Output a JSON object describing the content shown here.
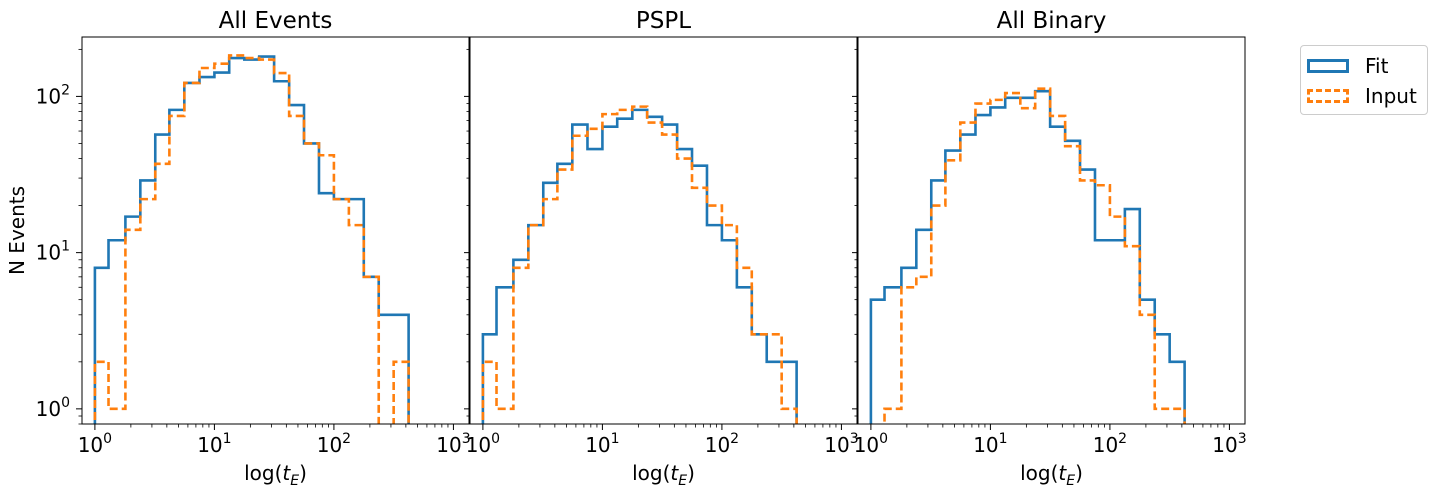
{
  "figure": {
    "ylabel": "N Events",
    "legend": {
      "fit_label": "Fit",
      "input_label": "Input",
      "placement": "outside-right-top"
    },
    "colors": {
      "fit": "#1f77b4",
      "input": "#ff7f0e",
      "axis": "#000000",
      "background": "#ffffff"
    }
  },
  "chart_data": [
    {
      "type": "bar",
      "title": "All Events",
      "xlabel": "log(t_E)",
      "ylabel": "N Events",
      "xscale": "log",
      "yscale": "log",
      "xlim": [
        0.78,
        1350
      ],
      "ylim": [
        0.8,
        240
      ],
      "x_ticks": [
        "10^0",
        "10^1",
        "10^2",
        "10^3"
      ],
      "y_ticks": [
        "10^0",
        "10^1",
        "10^2"
      ],
      "bin_edges": [
        1.0,
        1.3,
        1.8,
        2.4,
        3.2,
        4.2,
        5.6,
        7.5,
        10.0,
        13.3,
        17.8,
        23.7,
        31.6,
        42.2,
        56.2,
        75.0,
        100.0,
        133.4,
        177.8,
        237.1,
        316.2,
        421.7
      ],
      "series": [
        {
          "name": "Fit",
          "values": [
            8,
            12,
            17,
            29,
            57,
            82,
            122,
            133,
            142,
            176,
            172,
            180,
            125,
            88,
            50,
            24,
            22,
            22,
            7,
            4,
            4
          ]
        },
        {
          "name": "Input",
          "values": [
            2,
            1,
            14,
            22,
            37,
            75,
            122,
            152,
            162,
            183,
            176,
            172,
            141,
            75,
            50,
            42,
            22,
            15,
            7,
            0,
            2
          ]
        }
      ]
    },
    {
      "type": "bar",
      "title": "PSPL",
      "xlabel": "log(t_E)",
      "ylabel": "N Events",
      "xscale": "log",
      "yscale": "log",
      "xlim": [
        0.78,
        1350
      ],
      "ylim": [
        0.8,
        240
      ],
      "x_ticks": [
        "10^0",
        "10^1",
        "10^2",
        "10^3"
      ],
      "y_ticks": [],
      "bin_edges": [
        1.0,
        1.3,
        1.8,
        2.4,
        3.2,
        4.2,
        5.6,
        7.5,
        10.0,
        13.3,
        17.8,
        23.7,
        31.6,
        42.2,
        56.2,
        75.0,
        100.0,
        133.4,
        177.8,
        237.1,
        316.2,
        421.7
      ],
      "series": [
        {
          "name": "Fit",
          "values": [
            3,
            6,
            9,
            15,
            28,
            37,
            66,
            46,
            64,
            72,
            82,
            74,
            66,
            46,
            36,
            15,
            12,
            6,
            3,
            2,
            2
          ]
        },
        {
          "name": "Input",
          "values": [
            2,
            1,
            8,
            15,
            22,
            34,
            56,
            62,
            77,
            82,
            86,
            68,
            57,
            40,
            26,
            20,
            15,
            8,
            3,
            3,
            1
          ]
        }
      ]
    },
    {
      "type": "bar",
      "title": "All Binary",
      "xlabel": "log(t_E)",
      "ylabel": "N Events",
      "xscale": "log",
      "yscale": "log",
      "xlim": [
        0.78,
        1350
      ],
      "ylim": [
        0.8,
        240
      ],
      "x_ticks": [
        "10^0",
        "10^1",
        "10^2",
        "10^3"
      ],
      "y_ticks": [],
      "bin_edges": [
        1.0,
        1.3,
        1.8,
        2.4,
        3.2,
        4.2,
        5.6,
        7.5,
        10.0,
        13.3,
        17.8,
        23.7,
        31.6,
        42.2,
        56.2,
        75.0,
        100.0,
        133.4,
        177.8,
        237.1,
        316.2,
        421.7
      ],
      "series": [
        {
          "name": "Fit",
          "values": [
            5,
            6,
            8,
            14,
            29,
            45,
            57,
            76,
            85,
            98,
            98,
            108,
            64,
            52,
            34,
            12,
            12,
            19,
            5,
            3,
            2
          ]
        },
        {
          "name": "Input",
          "values": [
            0.7,
            1,
            6,
            7,
            20,
            39,
            68,
            90,
            95,
            105,
            84,
            112,
            75,
            48,
            29,
            27,
            17,
            11,
            4,
            1,
            1
          ]
        }
      ]
    }
  ]
}
